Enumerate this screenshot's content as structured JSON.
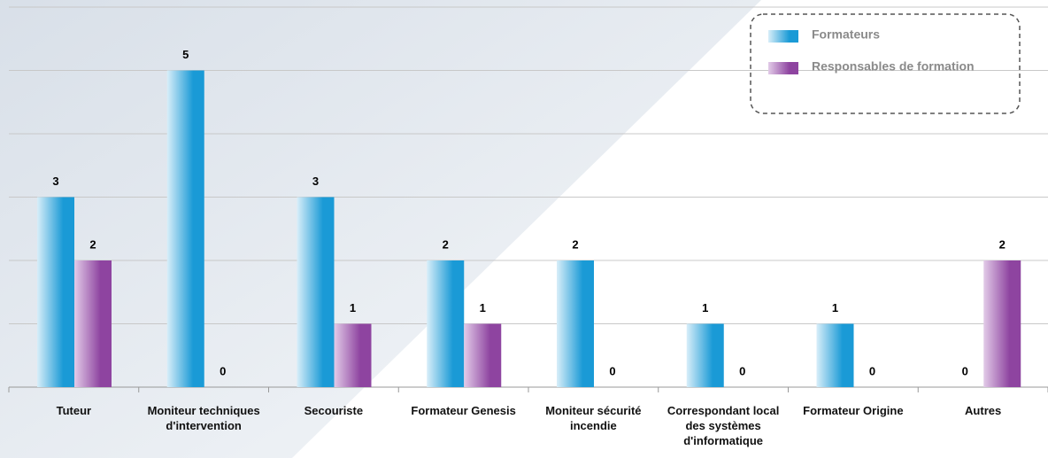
{
  "chart_data": {
    "type": "bar",
    "categories": [
      "Tuteur",
      "Moniteur techniques d'intervention",
      "Secouriste",
      "Formateur Genesis",
      "Moniteur sécurité incendie",
      "Correspondant local des systèmes d'informatique",
      "Formateur Origine",
      "Autres"
    ],
    "series": [
      {
        "name": "Formateurs",
        "color": "#1a9ad6",
        "values": [
          3,
          5,
          3,
          2,
          2,
          1,
          1,
          0
        ]
      },
      {
        "name": "Responsables de formation",
        "color": "#8e44a0",
        "values": [
          2,
          0,
          1,
          1,
          0,
          0,
          0,
          2
        ]
      }
    ],
    "ylim": [
      0,
      6
    ],
    "yticks": [
      0,
      1,
      2,
      3,
      4,
      5,
      6
    ],
    "grid": true,
    "legend": "top-right"
  }
}
